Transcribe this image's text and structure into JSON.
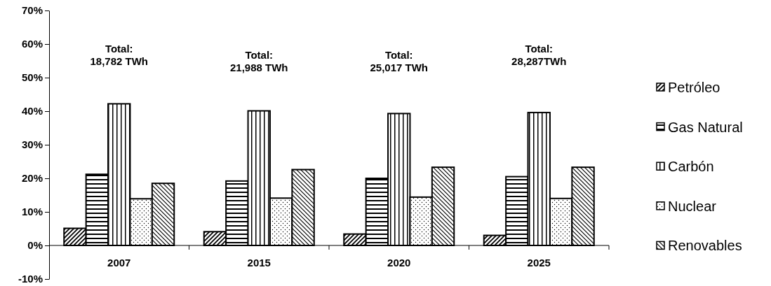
{
  "chart_data": {
    "type": "bar",
    "categories": [
      "2007",
      "2015",
      "2020",
      "2025"
    ],
    "series": [
      {
        "name": "Petróleo",
        "color": "#000000",
        "values": [
          5.1,
          4.1,
          3.4,
          3.0
        ]
      },
      {
        "name": "Gas Natural",
        "color": "#000000",
        "values": [
          21.2,
          19.2,
          20.0,
          20.5
        ]
      },
      {
        "name": "Carbón",
        "color": "#000000",
        "values": [
          42.2,
          40.1,
          39.3,
          39.6
        ]
      },
      {
        "name": "Nuclear",
        "color": "#000000",
        "values": [
          13.9,
          14.1,
          14.4,
          14.0
        ]
      },
      {
        "name": "Renovables",
        "color": "#000000",
        "values": [
          18.5,
          22.6,
          23.3,
          23.3
        ]
      }
    ],
    "ylim": [
      -10,
      70
    ],
    "yticks": [
      {
        "value": -10,
        "label": "-10%"
      },
      {
        "value": 0,
        "label": "0%"
      },
      {
        "value": 10,
        "label": "10%"
      },
      {
        "value": 20,
        "label": "20%"
      },
      {
        "value": 30,
        "label": "30%"
      },
      {
        "value": 40,
        "label": "40%"
      },
      {
        "value": 50,
        "label": "50%"
      },
      {
        "value": 60,
        "label": "60%"
      },
      {
        "value": 70,
        "label": "70%"
      }
    ],
    "annotations": [
      "Total:\n18,782 TWh",
      "Total:\n21,988 TWh",
      "Total:\n25,017 TWh",
      "Total:\n28,287TWh"
    ],
    "legend": "right",
    "grid": false
  }
}
